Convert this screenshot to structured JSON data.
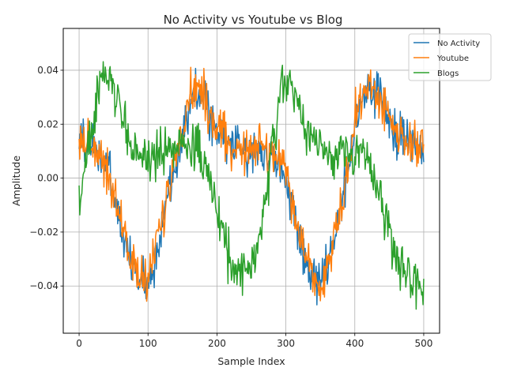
{
  "chart_data": {
    "type": "line",
    "title": "No Activity vs Youtube vs Blog",
    "xlabel": "Sample Index",
    "ylabel": "Amplitude",
    "xlim": [
      -23,
      523
    ],
    "ylim": [
      -0.0575,
      0.0555
    ],
    "xticks": [
      0,
      100,
      200,
      300,
      400,
      500
    ],
    "xtick_labels": [
      "0",
      "100",
      "200",
      "300",
      "400",
      "500"
    ],
    "yticks": [
      -0.04,
      -0.02,
      0.0,
      0.02,
      0.04
    ],
    "ytick_labels": [
      "−0.04",
      "−0.02",
      "0.00",
      "0.02",
      "0.04"
    ],
    "grid": true,
    "legend_position": "top-right",
    "series": [
      {
        "name": "No Activity",
        "color": "#1f77b4",
        "x": [
          0,
          20,
          40,
          55,
          70,
          85,
          100,
          115,
          130,
          150,
          165,
          180,
          200,
          220,
          240,
          260,
          280,
          300,
          315,
          330,
          345,
          360,
          380,
          400,
          420,
          440,
          460,
          480,
          500
        ],
        "y": [
          0.015,
          0.012,
          0.006,
          -0.012,
          -0.028,
          -0.038,
          -0.038,
          -0.026,
          -0.005,
          0.018,
          0.03,
          0.03,
          0.016,
          0.013,
          0.01,
          0.011,
          0.008,
          0.0,
          -0.018,
          -0.033,
          -0.038,
          -0.033,
          -0.014,
          0.02,
          0.034,
          0.029,
          0.016,
          0.014,
          0.012
        ]
      },
      {
        "name": "Youtube",
        "color": "#ff7f0e",
        "x": [
          0,
          20,
          40,
          55,
          70,
          85,
          100,
          115,
          130,
          150,
          165,
          180,
          200,
          220,
          240,
          260,
          280,
          300,
          315,
          330,
          345,
          360,
          380,
          400,
          420,
          440,
          460,
          480,
          500
        ],
        "y": [
          0.014,
          0.013,
          0.004,
          -0.01,
          -0.025,
          -0.037,
          -0.036,
          -0.024,
          -0.004,
          0.02,
          0.034,
          0.032,
          0.017,
          0.012,
          0.011,
          0.012,
          0.009,
          0.003,
          -0.016,
          -0.031,
          -0.039,
          -0.034,
          -0.012,
          0.022,
          0.036,
          0.028,
          0.017,
          0.013,
          0.01
        ]
      },
      {
        "name": "Blogs",
        "color": "#2ca02c",
        "x": [
          0,
          15,
          30,
          45,
          60,
          80,
          100,
          120,
          140,
          160,
          180,
          200,
          220,
          240,
          260,
          280,
          295,
          310,
          330,
          350,
          370,
          390,
          410,
          430,
          450,
          470,
          490,
          500
        ],
        "y": [
          -0.008,
          0.012,
          0.035,
          0.038,
          0.024,
          0.01,
          0.008,
          0.009,
          0.011,
          0.014,
          0.008,
          -0.012,
          -0.032,
          -0.036,
          -0.026,
          0.008,
          0.036,
          0.032,
          0.018,
          0.01,
          0.009,
          0.01,
          0.01,
          0.0,
          -0.02,
          -0.034,
          -0.038,
          -0.04
        ]
      }
    ]
  }
}
